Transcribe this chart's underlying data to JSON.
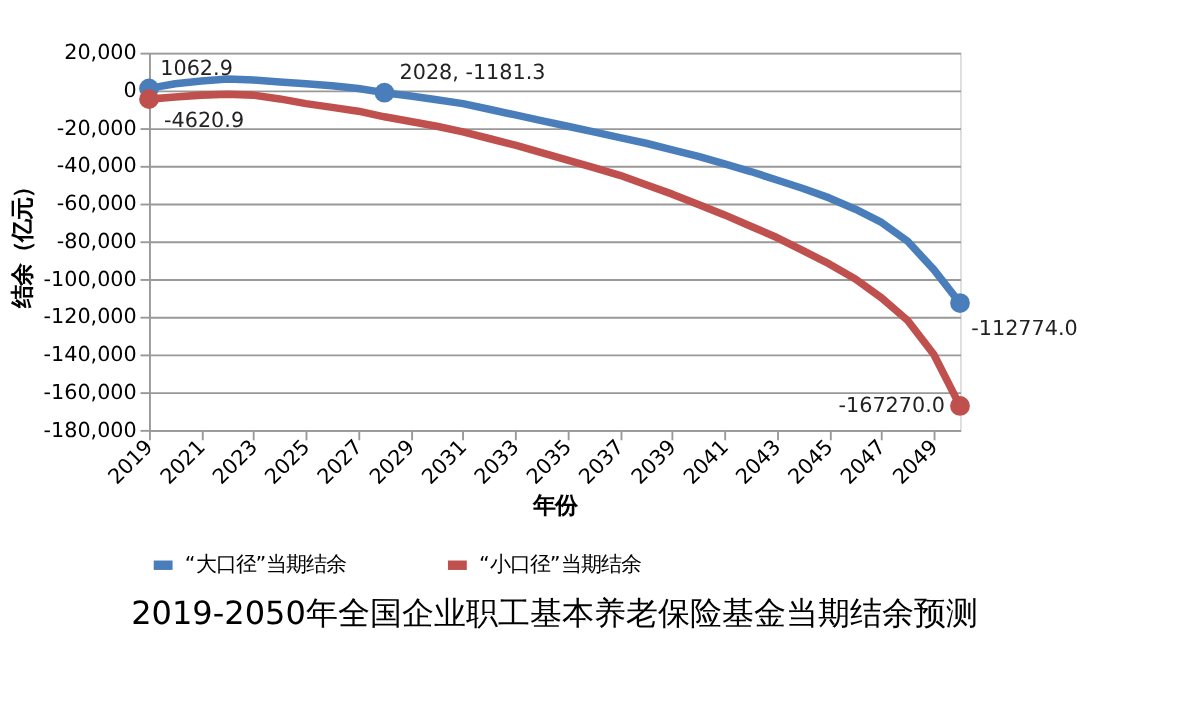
{
  "chart_data": {
    "type": "line",
    "title": "2019-2050年全国企业职工基本养老保险基金当期结余预测",
    "xlabel": "年份",
    "ylabel": "结余（亿元）",
    "x": [
      2019,
      2020,
      2021,
      2022,
      2023,
      2024,
      2025,
      2026,
      2027,
      2028,
      2029,
      2030,
      2031,
      2032,
      2033,
      2034,
      2035,
      2036,
      2037,
      2038,
      2039,
      2040,
      2041,
      2042,
      2043,
      2044,
      2045,
      2046,
      2047,
      2048,
      2049,
      2050
    ],
    "series": [
      {
        "name": "“大口径”当期结余",
        "color": "#4a7ebb",
        "values": [
          1062.9,
          3500,
          5000,
          6000,
          5500,
          4500,
          3500,
          2500,
          1000,
          -1181.3,
          -3000,
          -5000,
          -7000,
          -10000,
          -13000,
          -16000,
          -19000,
          -22000,
          -25000,
          -28000,
          -31500,
          -35000,
          -39000,
          -43000,
          -47500,
          -52000,
          -57000,
          -63000,
          -70000,
          -80000,
          -95000,
          -112774.0
        ]
      },
      {
        "name": "“小口径”当期结余",
        "color": "#c0504d",
        "values": [
          -4620.9,
          -3500,
          -2500,
          -2000,
          -2500,
          -4500,
          -7000,
          -9000,
          -11000,
          -14000,
          -16500,
          -19000,
          -22000,
          -25500,
          -29000,
          -33000,
          -37000,
          -41000,
          -45000,
          -50000,
          -55000,
          -60500,
          -66000,
          -72000,
          -78000,
          -85000,
          -92000,
          -100000,
          -110000,
          -122000,
          -140000,
          -167270.0
        ]
      }
    ],
    "xlim": [
      2019,
      2050
    ],
    "xticks": [
      2019,
      2021,
      2023,
      2025,
      2027,
      2029,
      2031,
      2033,
      2035,
      2037,
      2039,
      2041,
      2043,
      2045,
      2047,
      2049
    ],
    "ylim": [
      -180000,
      20000
    ],
    "yticks": [
      {
        "value": -180000,
        "label": "-180,000"
      },
      {
        "value": -160000,
        "label": "-160,000"
      },
      {
        "value": -140000,
        "label": "-140,000"
      },
      {
        "value": -120000,
        "label": "-120,000"
      },
      {
        "value": -100000,
        "label": "-100,000"
      },
      {
        "value": -80000,
        "label": "-80,000"
      },
      {
        "value": -60000,
        "label": "-60,000"
      },
      {
        "value": -40000,
        "label": "-40,000"
      },
      {
        "value": -20000,
        "label": "-20,000"
      },
      0,
      {
        "value": 20000,
        "label": "20,000"
      }
    ],
    "annotations": [
      {
        "text": "1062.9",
        "x": 2019,
        "y": 1062.9
      },
      {
        "text": "-4620.9",
        "x": 2019,
        "y": -4620.9
      },
      {
        "text": "2028, -1181.3",
        "x": 2028,
        "y": -1181.3
      },
      {
        "text": "-112774.0",
        "x": 2050,
        "y": -112774.0
      },
      {
        "text": "-167270.0",
        "x": 2050,
        "y": -167270.0
      }
    ],
    "grid": "y",
    "legend": "bottom",
    "line_style": "solid",
    "marker": "none"
  }
}
